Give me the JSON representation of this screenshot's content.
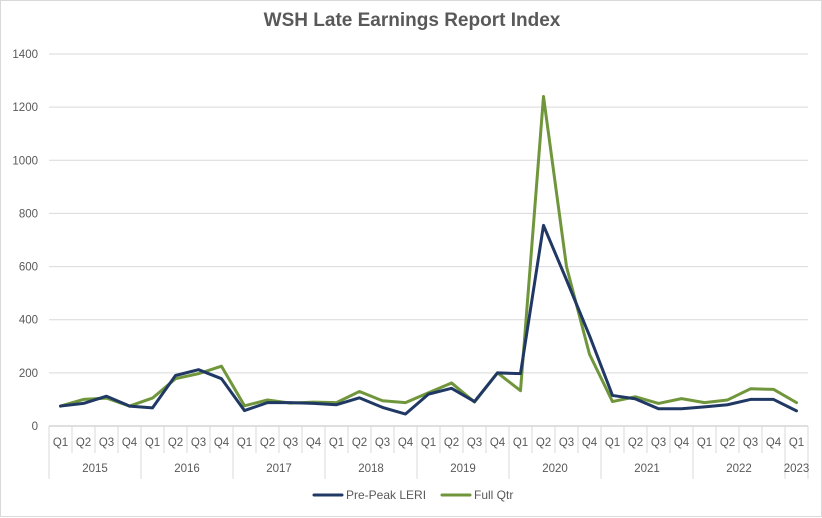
{
  "chart_data": {
    "type": "line",
    "title": "WSH Late Earnings Report Index",
    "xlabel": "",
    "ylabel": "",
    "ylim": [
      0,
      1400
    ],
    "yticks": [
      "0",
      "200",
      "400",
      "600",
      "800",
      "1000",
      "1200",
      "1400"
    ],
    "grid": true,
    "legend_position": "bottom",
    "categories": [
      "Q1",
      "Q2",
      "Q3",
      "Q4",
      "Q1",
      "Q2",
      "Q3",
      "Q4",
      "Q1",
      "Q2",
      "Q3",
      "Q4",
      "Q1",
      "Q2",
      "Q3",
      "Q4",
      "Q1",
      "Q2",
      "Q3",
      "Q4",
      "Q1",
      "Q2",
      "Q3",
      "Q4",
      "Q1",
      "Q2",
      "Q3",
      "Q4",
      "Q1",
      "Q2",
      "Q3",
      "Q4",
      "Q1"
    ],
    "year_groups": [
      {
        "label": "2015",
        "count": 4
      },
      {
        "label": "2016",
        "count": 4
      },
      {
        "label": "2017",
        "count": 4
      },
      {
        "label": "2018",
        "count": 4
      },
      {
        "label": "2019",
        "count": 4
      },
      {
        "label": "2020",
        "count": 4
      },
      {
        "label": "2021",
        "count": 4
      },
      {
        "label": "2022",
        "count": 4
      },
      {
        "label": "2023",
        "count": 1
      }
    ],
    "series": [
      {
        "name": "Pre-Peak LERI",
        "color": "#203864",
        "values": [
          75,
          85,
          112,
          75,
          68,
          190,
          212,
          178,
          58,
          88,
          88,
          85,
          80,
          106,
          70,
          45,
          120,
          142,
          92,
          200,
          197,
          755,
          550,
          340,
          115,
          102,
          65,
          65,
          72,
          80,
          100,
          100,
          57
        ]
      },
      {
        "name": "Full Qtr",
        "color": "#70963c",
        "values": [
          75,
          100,
          105,
          75,
          105,
          178,
          197,
          225,
          76,
          98,
          86,
          90,
          88,
          130,
          95,
          88,
          125,
          162,
          90,
          200,
          133,
          1240,
          600,
          270,
          92,
          110,
          85,
          103,
          88,
          98,
          140,
          138,
          88
        ]
      }
    ]
  }
}
